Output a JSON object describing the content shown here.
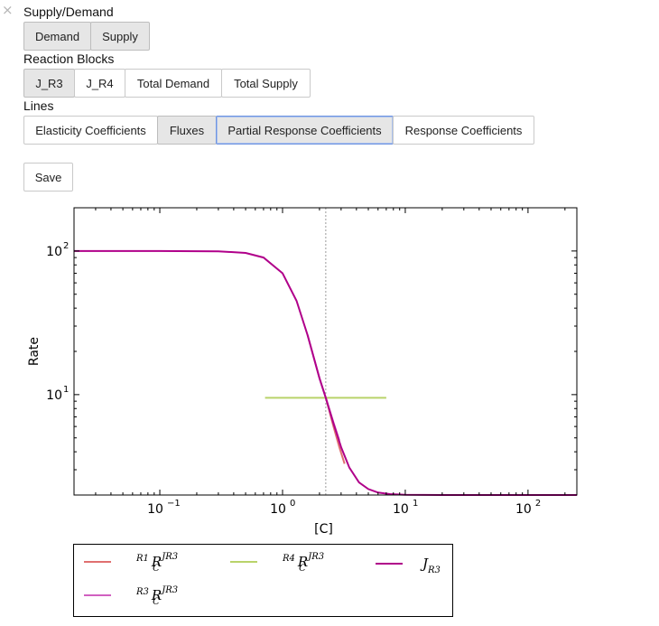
{
  "close_icon": "×",
  "supply_demand": {
    "label": "Supply/Demand",
    "buttons": [
      {
        "label": "Demand",
        "state": "active"
      },
      {
        "label": "Supply",
        "state": "active"
      }
    ]
  },
  "reaction_blocks": {
    "label": "Reaction Blocks",
    "buttons": [
      {
        "label": "J_R3",
        "state": "active"
      },
      {
        "label": "J_R4",
        "state": "normal"
      },
      {
        "label": "Total Demand",
        "state": "normal"
      },
      {
        "label": "Total Supply",
        "state": "normal"
      }
    ]
  },
  "lines": {
    "label": "Lines",
    "buttons": [
      {
        "label": "Elasticity Coefficients",
        "state": "normal"
      },
      {
        "label": "Fluxes",
        "state": "active"
      },
      {
        "label": "Partial Response Coefficients",
        "state": "focused"
      },
      {
        "label": "Response Coefficients",
        "state": "normal"
      }
    ]
  },
  "save_label": "Save",
  "colors": {
    "r1": "#e07070",
    "r4": "#b9d36a",
    "j": "#b0008a",
    "r3": "#d060c0"
  },
  "chart_data": {
    "type": "line",
    "xlabel": "[C]",
    "ylabel": "Rate",
    "xscale": "log",
    "yscale": "log",
    "xlim": [
      0.02,
      250
    ],
    "ylim": [
      2.0,
      200
    ],
    "x_ticks": [
      {
        "value": 0.1,
        "base": "10",
        "exp": "−1"
      },
      {
        "value": 1,
        "base": "10",
        "exp": "0"
      },
      {
        "value": 10,
        "base": "10",
        "exp": "1"
      },
      {
        "value": 100,
        "base": "10",
        "exp": "2"
      }
    ],
    "y_ticks": [
      {
        "value": 10,
        "base": "10",
        "exp": "1"
      },
      {
        "value": 100,
        "base": "10",
        "exp": "2"
      }
    ],
    "steady_state_x": 2.25,
    "series": [
      {
        "id": "j",
        "x": [
          0.02,
          0.1,
          0.3,
          0.5,
          0.7,
          1.0,
          1.3,
          1.6,
          2.0,
          2.25,
          2.6,
          3.0,
          3.5,
          4.2,
          5.0,
          6.0,
          7.5,
          10,
          20,
          50,
          100,
          250
        ],
        "y": [
          100,
          100,
          99.5,
          97,
          90,
          70,
          45,
          26,
          13,
          9.5,
          6.3,
          4.3,
          3.1,
          2.45,
          2.2,
          2.08,
          2.03,
          2.01,
          2.0,
          2.0,
          2.0,
          2.0
        ]
      },
      {
        "id": "r3",
        "x": [
          1.6,
          2.0,
          2.25,
          2.6,
          2.9
        ],
        "y": [
          26,
          13,
          9.5,
          6.4,
          4.8
        ]
      },
      {
        "id": "r1",
        "x": [
          2.25,
          2.6,
          2.9,
          3.2
        ],
        "y": [
          9.5,
          6.0,
          4.3,
          3.3
        ]
      },
      {
        "id": "r4",
        "x": [
          0.72,
          7.0
        ],
        "y": [
          9.5,
          9.5
        ]
      }
    ]
  },
  "legend": [
    {
      "series": "r1",
      "pre": "R1",
      "base": "R",
      "sup": "JR3",
      "sub": "C"
    },
    {
      "series": "r4",
      "pre": "R4",
      "base": "R",
      "sup": "JR3",
      "sub": "C"
    },
    {
      "series": "j",
      "pre": "",
      "base": "J",
      "sup": "",
      "sub": "R3"
    },
    {
      "series": "r3",
      "pre": "R3",
      "base": "R",
      "sup": "JR3",
      "sub": "C"
    }
  ]
}
